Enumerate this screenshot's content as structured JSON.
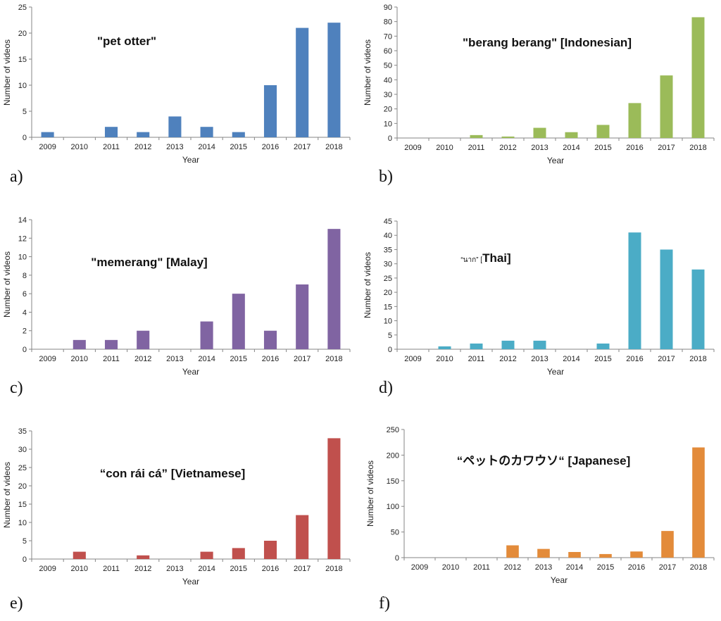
{
  "chart_data": [
    {
      "type": "bar",
      "panel_label": "a)",
      "title": "\"pet otter\"",
      "xlabel": "Year",
      "ylabel": "Number of videos",
      "categories": [
        "2009",
        "2010",
        "2011",
        "2012",
        "2013",
        "2014",
        "2015",
        "2016",
        "2017",
        "2018"
      ],
      "values": [
        1,
        0,
        2,
        1,
        4,
        2,
        1,
        10,
        21,
        22
      ],
      "ylim": [
        0,
        25
      ],
      "yticks": [
        0,
        5,
        10,
        15,
        20,
        25
      ],
      "color": "#4f81bd",
      "grid": false,
      "legend": "none"
    },
    {
      "type": "bar",
      "panel_label": "b)",
      "title": "\"berang berang\" [Indonesian]",
      "xlabel": "Year",
      "ylabel": "Number of videos",
      "categories": [
        "2009",
        "2010",
        "2011",
        "2012",
        "2013",
        "2014",
        "2015",
        "2016",
        "2017",
        "2018"
      ],
      "values": [
        0,
        0,
        2,
        1,
        7,
        4,
        9,
        24,
        43,
        83
      ],
      "ylim": [
        0,
        90
      ],
      "yticks": [
        0,
        10,
        20,
        30,
        40,
        50,
        60,
        70,
        80,
        90
      ],
      "color": "#9bbb59",
      "grid": false,
      "legend": "none"
    },
    {
      "type": "bar",
      "panel_label": "c)",
      "title": "\"memerang\" [Malay]",
      "xlabel": "Year",
      "ylabel": "Number of videos",
      "categories": [
        "2009",
        "2010",
        "2011",
        "2012",
        "2013",
        "2014",
        "2015",
        "2016",
        "2017",
        "2018"
      ],
      "values": [
        0,
        1,
        1,
        2,
        0,
        3,
        6,
        2,
        7,
        13
      ],
      "ylim": [
        0,
        14
      ],
      "yticks": [
        0,
        2,
        4,
        6,
        8,
        10,
        12,
        14
      ],
      "color": "#8064a2",
      "grid": false,
      "legend": "none"
    },
    {
      "type": "bar",
      "panel_label": "d)",
      "title_prefix": "“นาก” [",
      "title": "Thai]",
      "xlabel": "Year",
      "ylabel": "Number of videos",
      "categories": [
        "2009",
        "2010",
        "2011",
        "2012",
        "2013",
        "2014",
        "2015",
        "2016",
        "2017",
        "2018"
      ],
      "values": [
        0,
        1,
        2,
        3,
        3,
        0,
        2,
        41,
        35,
        28
      ],
      "ylim": [
        0,
        45
      ],
      "yticks": [
        0,
        5,
        10,
        15,
        20,
        25,
        30,
        35,
        40,
        45
      ],
      "color": "#4bacc6",
      "grid": false,
      "legend": "none"
    },
    {
      "type": "bar",
      "panel_label": "e)",
      "title": "“con rái cá” [Vietnamese]",
      "xlabel": "Year",
      "ylabel": "Number of videos",
      "categories": [
        "2009",
        "2010",
        "2011",
        "2012",
        "2013",
        "2014",
        "2015",
        "2016",
        "2017",
        "2018"
      ],
      "values": [
        0,
        2,
        0,
        1,
        0,
        2,
        3,
        5,
        12,
        33
      ],
      "ylim": [
        0,
        35
      ],
      "yticks": [
        0,
        5,
        10,
        15,
        20,
        25,
        30,
        35
      ],
      "color": "#c0504d",
      "grid": false,
      "legend": "none"
    },
    {
      "type": "bar",
      "panel_label": "f)",
      "title": "“ペットのカワウソ“ [Japanese]",
      "xlabel": "Year",
      "ylabel": "Number of videos",
      "categories": [
        "2009",
        "2010",
        "2011",
        "2012",
        "2013",
        "2014",
        "2015",
        "2016",
        "2017",
        "2018"
      ],
      "values": [
        0,
        0,
        0,
        24,
        17,
        11,
        7,
        12,
        52,
        215
      ],
      "ylim": [
        0,
        250
      ],
      "yticks": [
        0,
        50,
        100,
        150,
        200,
        250
      ],
      "color": "#e38b3a",
      "grid": false,
      "legend": "none"
    }
  ]
}
